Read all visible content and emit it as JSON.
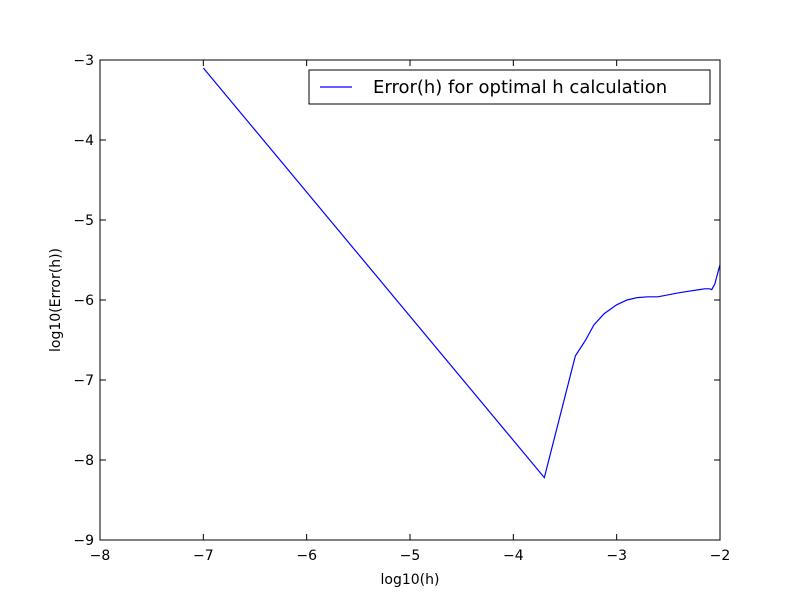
{
  "chart_data": {
    "type": "line",
    "xlabel": "log10(h)",
    "ylabel": "log10(Error(h))",
    "xlim": [
      -8,
      -2
    ],
    "ylim": [
      -9,
      -3
    ],
    "grid": false,
    "legend_placement": "top-right",
    "x_ticks": [
      -8,
      -7,
      -6,
      -5,
      -4,
      -3,
      -2
    ],
    "y_ticks": [
      -9,
      -8,
      -7,
      -6,
      -5,
      -4,
      -3
    ],
    "x_tick_labels": [
      "−8",
      "−7",
      "−6",
      "−5",
      "−4",
      "−3",
      "−2"
    ],
    "y_tick_labels": [
      "−9",
      "−8",
      "−7",
      "−6",
      "−5",
      "−4",
      "−3"
    ],
    "series": [
      {
        "name": "Error(h) for optimal h calculation",
        "color": "#0000ff",
        "x": [
          -7.0,
          -3.7,
          -3.4,
          -3.3,
          -3.22,
          -3.12,
          -3.0,
          -2.9,
          -2.8,
          -2.7,
          -2.6,
          -2.4,
          -2.3,
          -2.2,
          -2.15,
          -2.1,
          -2.08,
          -2.05,
          -2.03,
          -2.0
        ],
        "y": [
          -3.1,
          -8.22,
          -6.7,
          -6.5,
          -6.31,
          -6.17,
          -6.06,
          -6.0,
          -5.97,
          -5.96,
          -5.96,
          -5.91,
          -5.89,
          -5.87,
          -5.86,
          -5.86,
          -5.87,
          -5.8,
          -5.7,
          -5.56
        ]
      }
    ]
  }
}
